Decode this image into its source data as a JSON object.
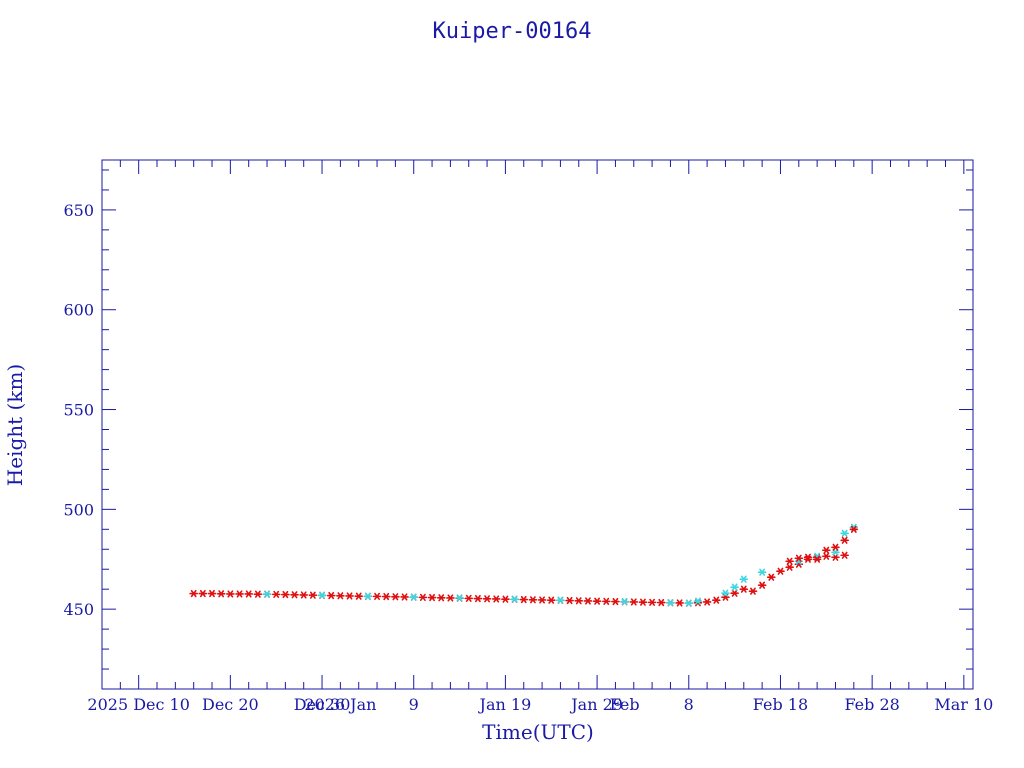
{
  "chart_data": {
    "type": "scatter",
    "title": "Kuiper-00164",
    "xlabel": "Time(UTC)",
    "ylabel": "Height (km)",
    "xlim": [
      "2025-12-06",
      "2026-03-11"
    ],
    "ylim": [
      410,
      675
    ],
    "grid": false,
    "x_tick_labels": [
      "2025 Dec 10",
      "Dec 20",
      "Dec 30",
      "2026 Jan",
      "9",
      "Jan 19",
      "Jan 29",
      "Feb",
      "8",
      "Feb 18",
      "Feb 28",
      "Mar 10"
    ],
    "x_tick_dates": [
      "2025-12-10",
      "2025-12-20",
      "2025-12-30",
      "2026-01-01",
      "2026-01-09",
      "2026-01-19",
      "2026-01-29",
      "2026-02-01",
      "2026-02-08",
      "2026-02-18",
      "2026-02-28",
      "2026-03-10"
    ],
    "y_ticks": [
      450,
      500,
      550,
      600,
      650
    ],
    "y_tick_labels": [
      "450",
      "500",
      "550",
      "600",
      "650"
    ],
    "colors": {
      "axis": "#1a1aa6",
      "primary": "#e01010",
      "secondary": "#3fd6e0"
    },
    "series": [
      {
        "marker": "asterisk",
        "color": "#e01010",
        "x": [
          "2025-12-16",
          "2025-12-17",
          "2025-12-18",
          "2025-12-19",
          "2025-12-20",
          "2025-12-21",
          "2025-12-22",
          "2025-12-23",
          "2025-12-24",
          "2025-12-25",
          "2025-12-26",
          "2025-12-27",
          "2025-12-28",
          "2025-12-29",
          "2025-12-30",
          "2025-12-31",
          "2026-01-01",
          "2026-01-02",
          "2026-01-03",
          "2026-01-04",
          "2026-01-05",
          "2026-01-06",
          "2026-01-07",
          "2026-01-08",
          "2026-01-09",
          "2026-01-10",
          "2026-01-11",
          "2026-01-12",
          "2026-01-13",
          "2026-01-14",
          "2026-01-15",
          "2026-01-16",
          "2026-01-17",
          "2026-01-18",
          "2026-01-19",
          "2026-01-20",
          "2026-01-21",
          "2026-01-22",
          "2026-01-23",
          "2026-01-24",
          "2026-01-25",
          "2026-01-26",
          "2026-01-27",
          "2026-01-28",
          "2026-01-29",
          "2026-01-30",
          "2026-01-31",
          "2026-02-01",
          "2026-02-02",
          "2026-02-03",
          "2026-02-04",
          "2026-02-05",
          "2026-02-06",
          "2026-02-07",
          "2026-02-08",
          "2026-02-09",
          "2026-02-10",
          "2026-02-11",
          "2026-02-12",
          "2026-02-13",
          "2026-02-14",
          "2026-02-15",
          "2026-02-16",
          "2026-02-17",
          "2026-02-18",
          "2026-02-19",
          "2026-02-20",
          "2026-02-21",
          "2026-02-22",
          "2026-02-23",
          "2026-02-24",
          "2026-02-25"
        ],
        "y": [
          457.8,
          457.8,
          457.8,
          457.7,
          457.6,
          457.6,
          457.6,
          457.5,
          457.5,
          457.4,
          457.3,
          457.2,
          457.1,
          457.0,
          456.9,
          456.8,
          456.7,
          456.6,
          456.5,
          456.4,
          456.4,
          456.3,
          456.2,
          456.1,
          456.0,
          455.9,
          455.8,
          455.7,
          455.6,
          455.5,
          455.4,
          455.3,
          455.2,
          455.1,
          455.0,
          454.9,
          454.8,
          454.7,
          454.6,
          454.5,
          454.4,
          454.3,
          454.2,
          454.1,
          454.0,
          453.9,
          453.8,
          453.7,
          453.6,
          453.5,
          453.4,
          453.3,
          453.2,
          453.1,
          453.0,
          453.2,
          453.6,
          454.5,
          456.0,
          458.0,
          460.0,
          459.0,
          462.0,
          466.0,
          469.0,
          471.0,
          472.5,
          475.0,
          476.0,
          476.5,
          476.0,
          477.0
        ]
      },
      {
        "marker": "asterisk",
        "color": "#3fd6e0",
        "x": [
          "2025-12-24",
          "2025-12-30",
          "2026-01-04",
          "2026-01-09",
          "2026-01-14",
          "2026-01-20",
          "2026-01-25",
          "2026-02-01",
          "2026-02-06",
          "2026-02-08",
          "2026-02-09",
          "2026-02-12",
          "2026-02-13",
          "2026-02-14",
          "2026-02-16",
          "2026-02-20",
          "2026-02-22",
          "2026-02-24",
          "2026-02-25",
          "2026-02-26"
        ],
        "y": [
          457.5,
          457.0,
          456.5,
          456.0,
          455.6,
          455.0,
          454.5,
          453.8,
          453.2,
          453.0,
          454.0,
          458.0,
          461.0,
          465.0,
          468.5,
          474.0,
          476.5,
          478.5,
          488.0,
          491.0
        ]
      },
      {
        "marker": "asterisk",
        "color": "#e01010",
        "x": [
          "2026-02-19",
          "2026-02-20",
          "2026-02-21",
          "2026-02-22",
          "2026-02-23",
          "2026-02-24",
          "2026-02-25",
          "2026-02-26"
        ],
        "y": [
          474.0,
          475.5,
          476.0,
          475.0,
          479.5,
          481.0,
          484.5,
          490.0
        ]
      }
    ]
  }
}
